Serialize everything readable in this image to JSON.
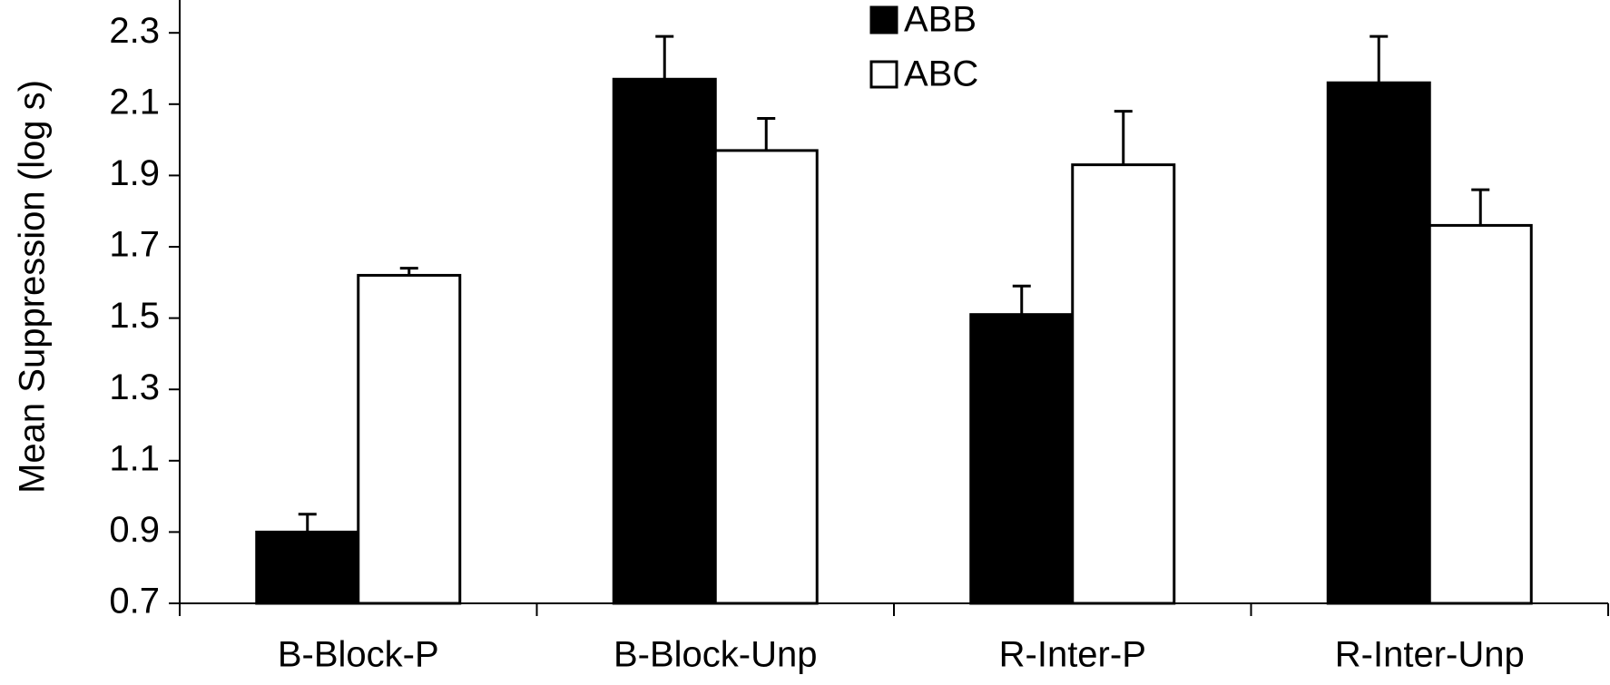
{
  "chart_data": {
    "type": "bar",
    "title": "",
    "xlabel": "",
    "ylabel": "Mean Suppression (log s)",
    "ylim": [
      0.7,
      2.4
    ],
    "yticks": [
      "0.7",
      "0.9",
      "1.1",
      "1.3",
      "1.5",
      "1.7",
      "1.9",
      "2.1",
      "2.3"
    ],
    "categories": [
      "B-Block-P",
      "B-Block-Unp",
      "R-Inter-P",
      "R-Inter-Unp"
    ],
    "series": [
      {
        "name": "ABB",
        "values": [
          0.9,
          2.17,
          1.51,
          2.16
        ],
        "error": [
          0.05,
          0.12,
          0.08,
          0.13
        ],
        "color": "#000000"
      },
      {
        "name": "ABC",
        "values": [
          1.62,
          1.97,
          1.93,
          1.76
        ],
        "error": [
          0.02,
          0.09,
          0.15,
          0.1
        ],
        "color": "#ffffff"
      }
    ],
    "grid": false,
    "legend_position": "top-center"
  }
}
